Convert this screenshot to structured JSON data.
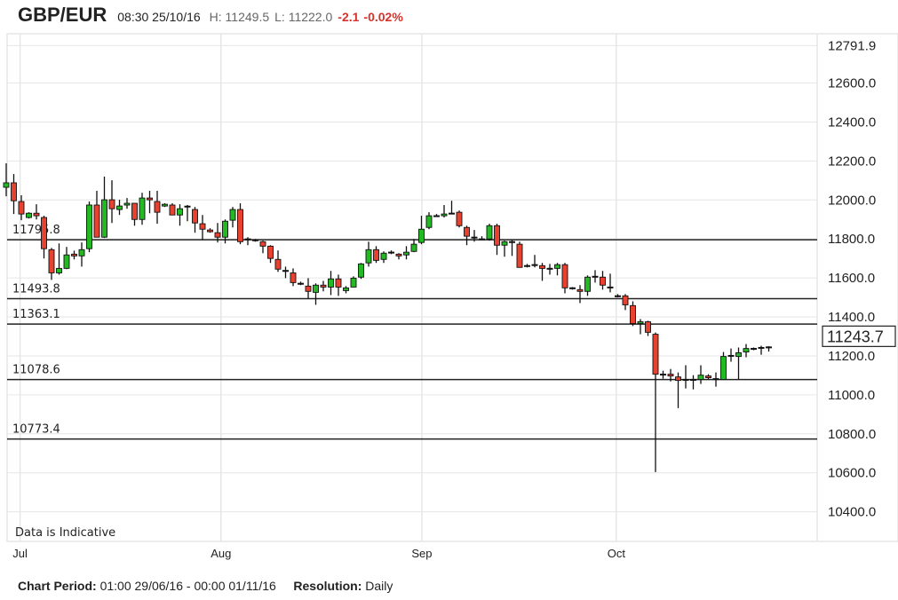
{
  "header": {
    "symbol": "GBP/EUR",
    "timestamp": "08:30 25/10/16",
    "high": "H: 11249.5",
    "low": "L: 11222.0",
    "change": "-2.1",
    "change_pct": "-0.02%"
  },
  "footer": {
    "period_label": "Chart Period:",
    "period_value": "01:00 29/06/16 - 00:00 01/11/16",
    "resolution_label": "Resolution:",
    "resolution_value": "Daily"
  },
  "colors": {
    "up": "#22b922",
    "down": "#e8412f",
    "doji": "#111111",
    "grid": "#e6e6e6",
    "level_line": "#222222"
  },
  "chart_data": {
    "type": "candlestick",
    "title": "",
    "xlabel": "",
    "ylabel": "",
    "ylim": [
      10248,
      12853
    ],
    "grid": true,
    "watermark": "Data is Indicative",
    "y_ticks": [
      "12791.9",
      "12600.0",
      "12400.0",
      "12200.0",
      "12000.0",
      "11800.0",
      "11600.0",
      "11400.0",
      "11200.0",
      "11000.0",
      "10800.0",
      "10600.0",
      "10400.0"
    ],
    "x_ticks": [
      {
        "label": "Jul",
        "date": "2016-07-01"
      },
      {
        "label": "Aug",
        "date": "2016-08-01"
      },
      {
        "label": "Sep",
        "date": "2016-09-01"
      },
      {
        "label": "Oct",
        "date": "2016-10-01"
      }
    ],
    "x_range": [
      "2016-06-29",
      "2016-11-01"
    ],
    "current_price": "11243.7",
    "levels": [
      "11795.8",
      "11493.8",
      "11363.1",
      "11078.6",
      "10773.4"
    ],
    "ohlc_fields": [
      "open",
      "high",
      "low",
      "close"
    ],
    "ohlc": [
      [
        12065,
        12188,
        12019,
        12088
      ],
      [
        12088,
        12133,
        11928,
        11996
      ],
      [
        11992,
        12024,
        11896,
        11928
      ],
      [
        11910,
        11937,
        11905,
        11932
      ],
      [
        11932,
        11978,
        11900,
        11919
      ],
      [
        11910,
        11919,
        11700,
        11750
      ],
      [
        11745,
        11754,
        11590,
        11626
      ],
      [
        11626,
        11777,
        11617,
        11649
      ],
      [
        11649,
        11759,
        11645,
        11718
      ],
      [
        11722,
        11740,
        11695,
        11713
      ],
      [
        11713,
        11782,
        11658,
        11745
      ],
      [
        11750,
        11992,
        11732,
        11974
      ],
      [
        11974,
        12047,
        11809,
        11809
      ],
      [
        11809,
        12120,
        11805,
        12001
      ],
      [
        12001,
        12101,
        11882,
        11955
      ],
      [
        11951,
        12001,
        11923,
        11969
      ],
      [
        11974,
        12010,
        11955,
        11983
      ],
      [
        11983,
        11983,
        11868,
        11900
      ],
      [
        11900,
        12037,
        11873,
        12010
      ],
      [
        12010,
        12047,
        11932,
        12001
      ],
      [
        11992,
        12047,
        11878,
        11937
      ],
      [
        11969,
        11983,
        11964,
        11978
      ],
      [
        11974,
        11983,
        11923,
        11923
      ],
      [
        11923,
        11978,
        11868,
        11955
      ],
      [
        11969,
        11974,
        11891,
        11966
      ],
      [
        11951,
        11964,
        11832,
        11882
      ],
      [
        11878,
        11923,
        11795,
        11850
      ],
      [
        11846,
        11855,
        11832,
        11837
      ],
      [
        11832,
        11882,
        11782,
        11809
      ],
      [
        11809,
        11900,
        11777,
        11891
      ],
      [
        11896,
        11964,
        11859,
        11951
      ],
      [
        11951,
        11983,
        11773,
        11786
      ],
      [
        11800,
        11809,
        11768,
        11798
      ],
      [
        11795,
        11800,
        11786,
        11793
      ],
      [
        11786,
        11791,
        11727,
        11763
      ],
      [
        11763,
        11768,
        11677,
        11700
      ],
      [
        11695,
        11741,
        11631,
        11645
      ],
      [
        11638,
        11658,
        11599,
        11636
      ],
      [
        11626,
        11649,
        11558,
        11576
      ],
      [
        11572,
        11581,
        11563,
        11570
      ],
      [
        11558,
        11599,
        11494,
        11531
      ],
      [
        11526,
        11572,
        11462,
        11563
      ],
      [
        11563,
        11585,
        11531,
        11553
      ],
      [
        11553,
        11636,
        11512,
        11595
      ],
      [
        11595,
        11617,
        11508,
        11553
      ],
      [
        11535,
        11558,
        11521,
        11549
      ],
      [
        11553,
        11608,
        11553,
        11599
      ],
      [
        11604,
        11677,
        11595,
        11672
      ],
      [
        11677,
        11786,
        11658,
        11745
      ],
      [
        11745,
        11763,
        11677,
        11690
      ],
      [
        11695,
        11736,
        11677,
        11727
      ],
      [
        11732,
        11741,
        11722,
        11730
      ],
      [
        11722,
        11727,
        11695,
        11718
      ],
      [
        11718,
        11763,
        11695,
        11732
      ],
      [
        11736,
        11800,
        11732,
        11773
      ],
      [
        11782,
        11919,
        11773,
        11850
      ],
      [
        11859,
        11937,
        11850,
        11919
      ],
      [
        11919,
        11928,
        11914,
        11917
      ],
      [
        11919,
        11974,
        11910,
        11928
      ],
      [
        11932,
        11996,
        11928,
        11930
      ],
      [
        11937,
        11946,
        11859,
        11868
      ],
      [
        11859,
        11868,
        11768,
        11814
      ],
      [
        11809,
        11846,
        11786,
        11807
      ],
      [
        11800,
        11814,
        11795,
        11798
      ],
      [
        11800,
        11878,
        11791,
        11868
      ],
      [
        11868,
        11878,
        11718,
        11768
      ],
      [
        11768,
        11791,
        11709,
        11786
      ],
      [
        11786,
        11795,
        11713,
        11784
      ],
      [
        11773,
        11786,
        11654,
        11654
      ],
      [
        11663,
        11672,
        11654,
        11661
      ],
      [
        11668,
        11718,
        11654,
        11666
      ],
      [
        11663,
        11677,
        11585,
        11649
      ],
      [
        11649,
        11672,
        11617,
        11647
      ],
      [
        11649,
        11677,
        11613,
        11668
      ],
      [
        11668,
        11677,
        11521,
        11549
      ],
      [
        11549,
        11553,
        11540,
        11547
      ],
      [
        11540,
        11563,
        11471,
        11531
      ],
      [
        11531,
        11613,
        11508,
        11604
      ],
      [
        11608,
        11640,
        11576,
        11606
      ],
      [
        11604,
        11636,
        11540,
        11563
      ],
      [
        11553,
        11622,
        11526,
        11551
      ],
      [
        11508,
        11517,
        11500,
        11506
      ],
      [
        11508,
        11517,
        11435,
        11462
      ],
      [
        11458,
        11480,
        11353,
        11366
      ],
      [
        11366,
        11389,
        11311,
        11375
      ],
      [
        11375,
        11380,
        11302,
        11321
      ],
      [
        11311,
        11320,
        10604,
        11106
      ],
      [
        11106,
        11124,
        11083,
        11104
      ],
      [
        11106,
        11133,
        11069,
        11101
      ],
      [
        11092,
        11115,
        10932,
        11074
      ],
      [
        11079,
        11152,
        11033,
        11077
      ],
      [
        11079,
        11101,
        11028,
        11077
      ],
      [
        11079,
        11152,
        11056,
        11101
      ],
      [
        11097,
        11106,
        11079,
        11088
      ],
      [
        11083,
        11115,
        11042,
        11081
      ],
      [
        11079,
        11220,
        11079,
        11197
      ],
      [
        11202,
        11238,
        11170,
        11200
      ],
      [
        11197,
        11243,
        11079,
        11216
      ],
      [
        11220,
        11261,
        11193,
        11238
      ],
      [
        11238,
        11243,
        11229,
        11236
      ],
      [
        11243,
        11252,
        11206,
        11241
      ],
      [
        11243,
        11249.5,
        11222,
        11243.7
      ]
    ]
  }
}
